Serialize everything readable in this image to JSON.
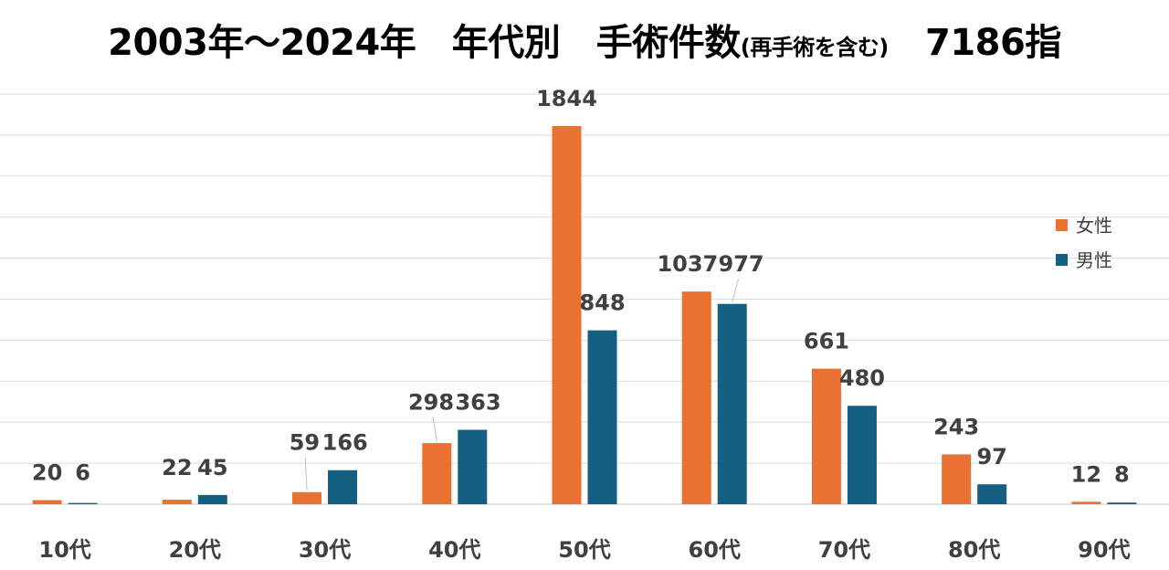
{
  "chart_data": {
    "type": "bar",
    "title_main": "2003年～2024年　年代別　手術件数",
    "title_note": "(再手術を含む)",
    "title_total": "7186指",
    "categories": [
      "10代",
      "20代",
      "30代",
      "40代",
      "50代",
      "60代",
      "70代",
      "80代",
      "90代"
    ],
    "series": [
      {
        "name": "女性",
        "color": "#E97132",
        "values": [
          20,
          22,
          59,
          298,
          1844,
          1037,
          661,
          243,
          12
        ]
      },
      {
        "name": "男性",
        "color": "#156082",
        "values": [
          6,
          45,
          166,
          363,
          848,
          977,
          480,
          97,
          8
        ]
      }
    ],
    "ylim": [
      0,
      2000
    ],
    "grid": true,
    "legend_position": "right"
  }
}
